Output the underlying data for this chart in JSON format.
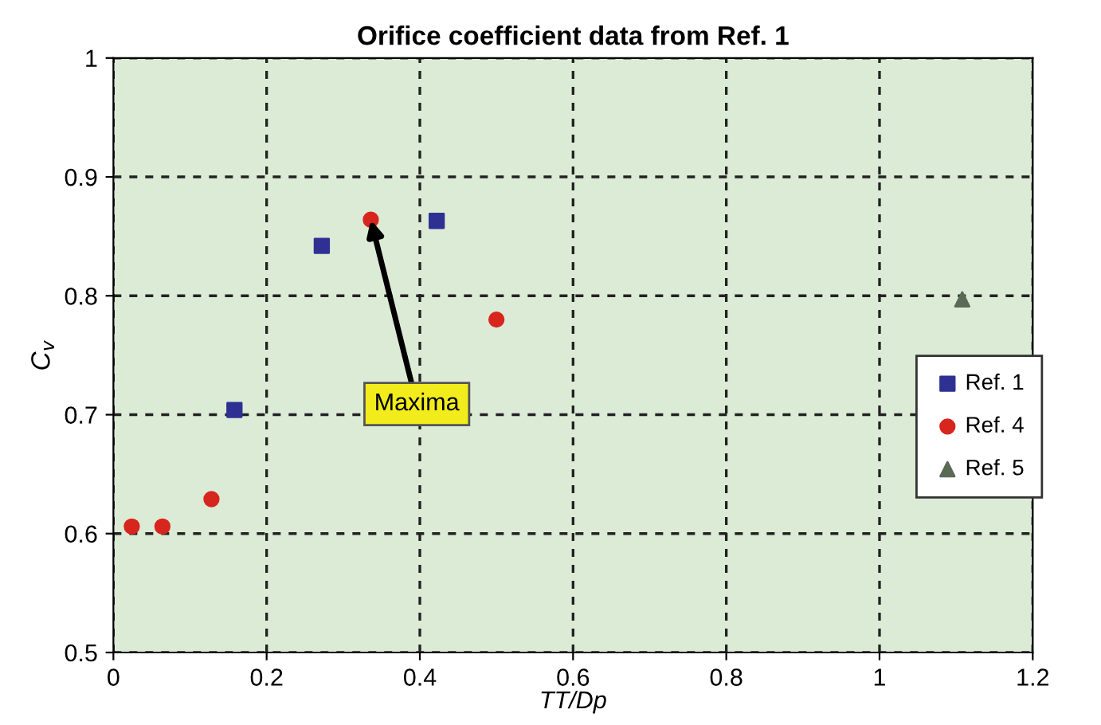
{
  "chart_data": {
    "type": "scatter",
    "title": "Orifice coefficient data from Ref. 1",
    "xlabel": "TT/Dp",
    "ylabel": "C$_{v}$",
    "series": [
      {
        "name": "Ref. 1",
        "color": "#2e3192",
        "marker": "square",
        "x": [
          0.158,
          0.272,
          0.422
        ],
        "values": [
          0.704,
          0.842,
          0.863
        ]
      },
      {
        "name": "Ref. 4",
        "color": "#d7261e",
        "marker": "circle",
        "x": [
          0.024,
          0.064,
          0.128,
          0.336,
          0.5
        ],
        "values": [
          0.606,
          0.606,
          0.629,
          0.864,
          0.78
        ]
      },
      {
        "name": "Ref. 5",
        "color": "#5a6b55",
        "marker": "triangle",
        "x": [
          1.108
        ],
        "values": [
          0.797
        ]
      }
    ],
    "annotations": [
      {
        "text": "Maxima",
        "x": 0.336,
        "y": 0.864
      }
    ],
    "xlim": [
      0,
      1.2
    ],
    "xticks": [
      0,
      0.2,
      0.4,
      0.6,
      0.8,
      1,
      1.2
    ],
    "ylim": [
      0.5,
      1
    ],
    "yticks": [
      0.5,
      0.6,
      0.7,
      0.8,
      0.9,
      1
    ],
    "grid": true,
    "legend": "right"
  }
}
